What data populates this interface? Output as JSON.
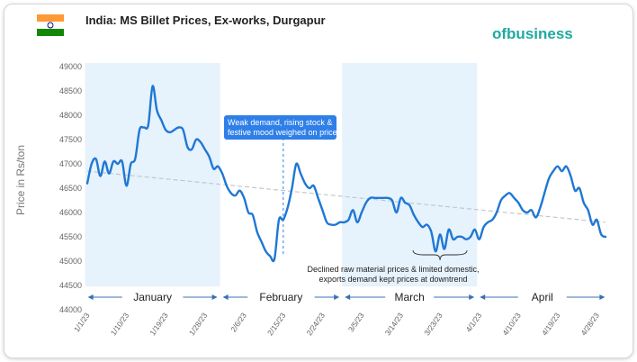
{
  "header": {
    "title": "India: MS Billet Prices, Ex-works, Durgapur",
    "logo_text": "ofbusiness",
    "flag_colors": {
      "saffron": "#FF9933",
      "white": "#FFFFFF",
      "green": "#138808",
      "chakra": "#000080"
    }
  },
  "colors": {
    "line": "#1f77d4",
    "band": "#e6f2fc",
    "trend": "#c2c8cf",
    "callout": "#2f7fe8"
  },
  "chart_data": {
    "type": "line",
    "title": "India: MS Billet Prices, Ex-works, Durgapur",
    "xlabel": "",
    "ylabel": "Price in Rs/ton",
    "ylim": [
      44000,
      49000
    ],
    "yticks": [
      44000,
      44500,
      45000,
      45500,
      46000,
      46500,
      47000,
      47500,
      48000,
      48500,
      49000
    ],
    "x_range": [
      "2023-01-01",
      "2023-04-30"
    ],
    "x_tick_labels": [
      "1/1/23",
      "1/10/23",
      "1/19/23",
      "1/28/23",
      "2/6/23",
      "2/15/23",
      "2/24/23",
      "3/5/23",
      "3/14/23",
      "3/23/23",
      "4/1/23",
      "4/10/23",
      "4/19/23",
      "4/28/23"
    ],
    "grid": false,
    "months": [
      {
        "name": "January",
        "start": "2023-01-01",
        "end": "2023-01-31",
        "shaded": true
      },
      {
        "name": "February",
        "start": "2023-02-01",
        "end": "2023-02-28",
        "shaded": false
      },
      {
        "name": "March",
        "start": "2023-03-01",
        "end": "2023-03-31",
        "shaded": true
      },
      {
        "name": "April",
        "start": "2023-04-01",
        "end": "2023-04-30",
        "shaded": false
      }
    ],
    "series": [
      {
        "values": [
          [
            "2023-01-01",
            46600
          ],
          [
            "2023-01-02",
            47000
          ],
          [
            "2023-01-03",
            47100
          ],
          [
            "2023-01-04",
            46750
          ],
          [
            "2023-01-05",
            47050
          ],
          [
            "2023-01-06",
            46800
          ],
          [
            "2023-01-07",
            47050
          ],
          [
            "2023-01-08",
            47000
          ],
          [
            "2023-01-09",
            47050
          ],
          [
            "2023-01-10",
            46550
          ],
          [
            "2023-01-11",
            47000
          ],
          [
            "2023-01-12",
            47100
          ],
          [
            "2023-01-13",
            47700
          ],
          [
            "2023-01-14",
            47750
          ],
          [
            "2023-01-15",
            47800
          ],
          [
            "2023-01-16",
            48600
          ],
          [
            "2023-01-17",
            48100
          ],
          [
            "2023-01-18",
            47900
          ],
          [
            "2023-01-19",
            47700
          ],
          [
            "2023-01-20",
            47650
          ],
          [
            "2023-01-21",
            47700
          ],
          [
            "2023-01-22",
            47750
          ],
          [
            "2023-01-23",
            47700
          ],
          [
            "2023-01-24",
            47350
          ],
          [
            "2023-01-25",
            47300
          ],
          [
            "2023-01-26",
            47500
          ],
          [
            "2023-01-27",
            47450
          ],
          [
            "2023-01-28",
            47300
          ],
          [
            "2023-01-29",
            47150
          ],
          [
            "2023-01-30",
            46900
          ],
          [
            "2023-01-31",
            46950
          ],
          [
            "2023-02-01",
            46800
          ],
          [
            "2023-02-02",
            46550
          ],
          [
            "2023-02-03",
            46400
          ],
          [
            "2023-02-04",
            46350
          ],
          [
            "2023-02-05",
            46450
          ],
          [
            "2023-02-06",
            46300
          ],
          [
            "2023-02-07",
            46000
          ],
          [
            "2023-02-08",
            45950
          ],
          [
            "2023-02-09",
            45600
          ],
          [
            "2023-02-10",
            45400
          ],
          [
            "2023-02-11",
            45200
          ],
          [
            "2023-02-12",
            45100
          ],
          [
            "2023-02-13",
            45050
          ],
          [
            "2023-02-14",
            45850
          ],
          [
            "2023-02-15",
            45850
          ],
          [
            "2023-02-16",
            46100
          ],
          [
            "2023-02-17",
            46500
          ],
          [
            "2023-02-18",
            47000
          ],
          [
            "2023-02-19",
            46800
          ],
          [
            "2023-02-20",
            46600
          ],
          [
            "2023-02-21",
            46500
          ],
          [
            "2023-02-22",
            46550
          ],
          [
            "2023-02-23",
            46300
          ],
          [
            "2023-02-24",
            46050
          ],
          [
            "2023-02-25",
            45800
          ],
          [
            "2023-02-26",
            45750
          ],
          [
            "2023-02-27",
            45750
          ],
          [
            "2023-02-28",
            45800
          ],
          [
            "2023-03-01",
            45800
          ],
          [
            "2023-03-02",
            45850
          ],
          [
            "2023-03-03",
            46050
          ],
          [
            "2023-03-04",
            45800
          ],
          [
            "2023-03-05",
            46000
          ],
          [
            "2023-03-06",
            46200
          ],
          [
            "2023-03-07",
            46300
          ],
          [
            "2023-03-08",
            46300
          ],
          [
            "2023-03-09",
            46300
          ],
          [
            "2023-03-10",
            46300
          ],
          [
            "2023-03-11",
            46300
          ],
          [
            "2023-03-12",
            46250
          ],
          [
            "2023-03-13",
            46000
          ],
          [
            "2023-03-14",
            46300
          ],
          [
            "2023-03-15",
            46200
          ],
          [
            "2023-03-16",
            46150
          ],
          [
            "2023-03-17",
            45950
          ],
          [
            "2023-03-18",
            45800
          ],
          [
            "2023-03-19",
            45700
          ],
          [
            "2023-03-20",
            45750
          ],
          [
            "2023-03-21",
            45600
          ],
          [
            "2023-03-22",
            45200
          ],
          [
            "2023-03-23",
            45550
          ],
          [
            "2023-03-24",
            45250
          ],
          [
            "2023-03-25",
            45650
          ],
          [
            "2023-03-26",
            45450
          ],
          [
            "2023-03-27",
            45500
          ],
          [
            "2023-03-28",
            45500
          ],
          [
            "2023-03-29",
            45450
          ],
          [
            "2023-03-30",
            45500
          ],
          [
            "2023-03-31",
            45650
          ],
          [
            "2023-04-01",
            45450
          ],
          [
            "2023-04-02",
            45700
          ],
          [
            "2023-04-03",
            45800
          ],
          [
            "2023-04-04",
            45850
          ],
          [
            "2023-04-05",
            46000
          ],
          [
            "2023-04-06",
            46250
          ],
          [
            "2023-04-07",
            46350
          ],
          [
            "2023-04-08",
            46400
          ],
          [
            "2023-04-09",
            46300
          ],
          [
            "2023-04-10",
            46200
          ],
          [
            "2023-04-11",
            46050
          ],
          [
            "2023-04-12",
            46000
          ],
          [
            "2023-04-13",
            46050
          ],
          [
            "2023-04-14",
            45900
          ],
          [
            "2023-04-15",
            46100
          ],
          [
            "2023-04-16",
            46400
          ],
          [
            "2023-04-17",
            46700
          ],
          [
            "2023-04-18",
            46850
          ],
          [
            "2023-04-19",
            46950
          ],
          [
            "2023-04-20",
            46850
          ],
          [
            "2023-04-21",
            46950
          ],
          [
            "2023-04-22",
            46750
          ],
          [
            "2023-04-23",
            46450
          ],
          [
            "2023-04-24",
            46500
          ],
          [
            "2023-04-25",
            46200
          ],
          [
            "2023-04-26",
            46050
          ],
          [
            "2023-04-27",
            45750
          ],
          [
            "2023-04-28",
            45850
          ],
          [
            "2023-04-29",
            45550
          ],
          [
            "2023-04-30",
            45500
          ]
        ]
      }
    ],
    "trendline": {
      "start": [
        "2023-01-01",
        46850
      ],
      "end": [
        "2023-04-30",
        45800
      ]
    },
    "annotations": [
      {
        "id": "feb-callout",
        "text_lines": [
          "Weak demand, rising stock &",
          "festive mood weighed on prices"
        ],
        "x": "2023-02-15",
        "style": "callout"
      },
      {
        "id": "march-note",
        "text_lines": [
          "Declined raw material prices & limited domestic,",
          "exports demand kept prices at downtrend"
        ],
        "x": "2023-03-23",
        "style": "brace"
      }
    ]
  }
}
